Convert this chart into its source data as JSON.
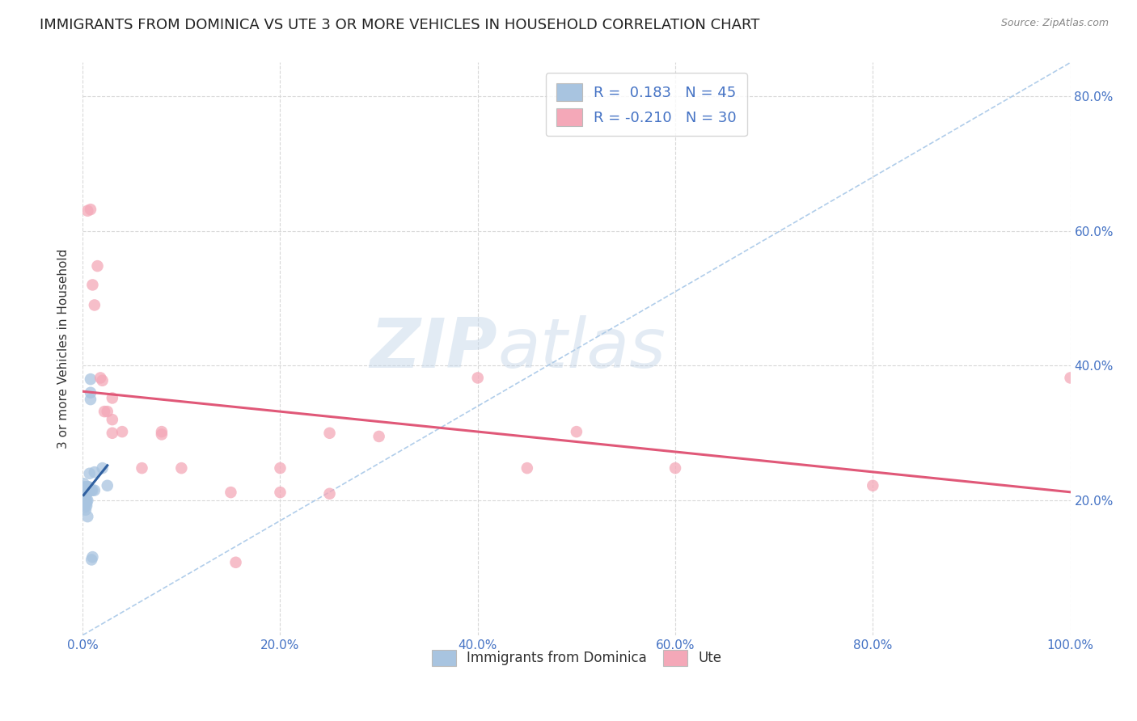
{
  "title": "IMMIGRANTS FROM DOMINICA VS UTE 3 OR MORE VEHICLES IN HOUSEHOLD CORRELATION CHART",
  "source": "Source: ZipAtlas.com",
  "ylabel": "3 or more Vehicles in Household",
  "xlim": [
    0.0,
    1.0
  ],
  "ylim": [
    0.0,
    0.85
  ],
  "xtick_labels": [
    "0.0%",
    "20.0%",
    "40.0%",
    "60.0%",
    "80.0%",
    "100.0%"
  ],
  "xtick_vals": [
    0.0,
    0.2,
    0.4,
    0.6,
    0.8,
    1.0
  ],
  "ytick_vals": [
    0.2,
    0.4,
    0.6,
    0.8
  ],
  "right_ytick_labels": [
    "20.0%",
    "40.0%",
    "60.0%",
    "80.0%"
  ],
  "legend_r1": "R =  0.183   N = 45",
  "legend_r2": "R = -0.210   N = 30",
  "blue_color": "#a8c4e0",
  "pink_color": "#f4a8b8",
  "blue_line_color": "#3060a0",
  "pink_line_color": "#e05878",
  "diag_line_color": "#a8c8e8",
  "blue_scatter": [
    [
      0.001,
      0.215
    ],
    [
      0.001,
      0.225
    ],
    [
      0.001,
      0.2
    ],
    [
      0.001,
      0.195
    ],
    [
      0.002,
      0.21
    ],
    [
      0.002,
      0.205
    ],
    [
      0.002,
      0.215
    ],
    [
      0.002,
      0.2
    ],
    [
      0.002,
      0.195
    ],
    [
      0.002,
      0.22
    ],
    [
      0.002,
      0.19
    ],
    [
      0.002,
      0.2
    ],
    [
      0.003,
      0.215
    ],
    [
      0.003,
      0.2
    ],
    [
      0.003,
      0.21
    ],
    [
      0.003,
      0.196
    ],
    [
      0.003,
      0.22
    ],
    [
      0.003,
      0.186
    ],
    [
      0.003,
      0.21
    ],
    [
      0.004,
      0.215
    ],
    [
      0.004,
      0.2
    ],
    [
      0.004,
      0.21
    ],
    [
      0.004,
      0.196
    ],
    [
      0.004,
      0.192
    ],
    [
      0.005,
      0.215
    ],
    [
      0.005,
      0.22
    ],
    [
      0.005,
      0.216
    ],
    [
      0.005,
      0.2
    ],
    [
      0.005,
      0.176
    ],
    [
      0.006,
      0.22
    ],
    [
      0.006,
      0.215
    ],
    [
      0.006,
      0.22
    ],
    [
      0.007,
      0.24
    ],
    [
      0.007,
      0.215
    ],
    [
      0.008,
      0.35
    ],
    [
      0.008,
      0.38
    ],
    [
      0.008,
      0.36
    ],
    [
      0.009,
      0.215
    ],
    [
      0.009,
      0.112
    ],
    [
      0.01,
      0.116
    ],
    [
      0.01,
      0.215
    ],
    [
      0.012,
      0.215
    ],
    [
      0.012,
      0.242
    ],
    [
      0.02,
      0.248
    ],
    [
      0.025,
      0.222
    ]
  ],
  "pink_scatter": [
    [
      0.005,
      0.63
    ],
    [
      0.008,
      0.632
    ],
    [
      0.01,
      0.52
    ],
    [
      0.012,
      0.49
    ],
    [
      0.015,
      0.548
    ],
    [
      0.018,
      0.382
    ],
    [
      0.02,
      0.378
    ],
    [
      0.022,
      0.332
    ],
    [
      0.025,
      0.332
    ],
    [
      0.03,
      0.352
    ],
    [
      0.03,
      0.32
    ],
    [
      0.03,
      0.3
    ],
    [
      0.04,
      0.302
    ],
    [
      0.06,
      0.248
    ],
    [
      0.08,
      0.302
    ],
    [
      0.08,
      0.298
    ],
    [
      0.1,
      0.248
    ],
    [
      0.15,
      0.212
    ],
    [
      0.155,
      0.108
    ],
    [
      0.2,
      0.248
    ],
    [
      0.2,
      0.212
    ],
    [
      0.25,
      0.3
    ],
    [
      0.25,
      0.21
    ],
    [
      0.3,
      0.295
    ],
    [
      0.4,
      0.382
    ],
    [
      0.45,
      0.248
    ],
    [
      0.5,
      0.302
    ],
    [
      0.6,
      0.248
    ],
    [
      0.8,
      0.222
    ],
    [
      1.0,
      0.382
    ]
  ],
  "watermark_zip": "ZIP",
  "watermark_atlas": "atlas",
  "background_color": "#ffffff",
  "grid_color": "#d8d8d8",
  "title_fontsize": 13,
  "axis_label_fontsize": 11,
  "tick_fontsize": 11,
  "marker_size": 110
}
